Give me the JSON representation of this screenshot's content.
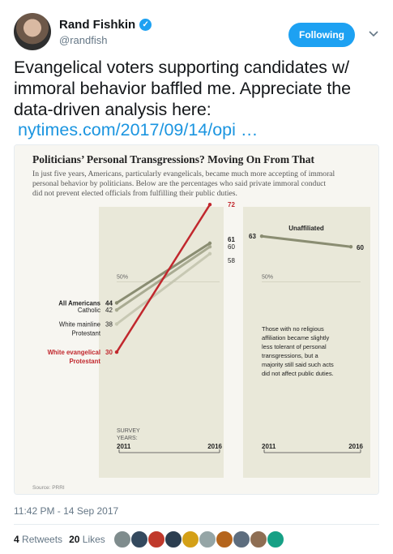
{
  "author": {
    "name": "Rand Fishkin",
    "handle": "@randfish"
  },
  "follow_label": "Following",
  "tweet": {
    "text": "Evangelical voters supporting candidates w/ immoral behavior baffled me. Appreciate the data-driven analysis here:",
    "link": "nytimes.com/2017/09/14/opi …"
  },
  "card": {
    "title": "Politicians’ Personal Transgressions? Moving On From That",
    "subtitle_line1": "In just five years, Americans, particularly evangelicals, became much more accepting of immoral",
    "subtitle_line2": "personal behavior by politicians. Below are the percentages who said private immoral conduct",
    "subtitle_line3": "did not prevent elected officials from fulfilling their public duties.",
    "source": "Source: PRRI",
    "note_line1": "Those with no religious",
    "note_line2": "affiliation became slightly",
    "note_line3": "less tolerant of personal",
    "note_line4": "transgressions, but a",
    "note_line5": "majority still said such acts",
    "note_line6": "did not affect public duties.",
    "survey_label_1": "SURVEY",
    "survey_label_2": "YEARS:",
    "ref_label": "50%"
  },
  "chart_data": [
    {
      "type": "line",
      "title": "Politicians’ Personal Transgressions? Moving On From That",
      "x": [
        "2011",
        "2016"
      ],
      "ylim": [
        0,
        100
      ],
      "reference_line": 50,
      "series": [
        {
          "name": "All Americans",
          "values": [
            44,
            61
          ],
          "color": "#8a8d72"
        },
        {
          "name": "Catholic",
          "values": [
            42,
            60
          ],
          "color": "#a9ab92"
        },
        {
          "name": "White mainline Protestant",
          "values": [
            38,
            58
          ],
          "color": "#c7c8b3"
        },
        {
          "name": "White evangelical Protestant",
          "values": [
            30,
            72
          ],
          "color": "#c1272d"
        }
      ],
      "label_lines": {
        "All Americans": [
          "All Americans"
        ],
        "Catholic": [
          "Catholic"
        ],
        "White mainline Protestant": [
          "White mainline",
          "Protestant"
        ],
        "White evangelical Protestant": [
          "White evangelical",
          "Protestant"
        ]
      }
    },
    {
      "type": "line",
      "x": [
        "2011",
        "2016"
      ],
      "ylim": [
        0,
        100
      ],
      "reference_line": 50,
      "series": [
        {
          "name": "Unaffiliated",
          "values": [
            63,
            60
          ],
          "color": "#8a8d72"
        }
      ]
    }
  ],
  "meta": {
    "timestamp": "11:42 PM - 14 Sep 2017",
    "retweets_count": "4",
    "retweets_label": "Retweets",
    "likes_count": "20",
    "likes_label": "Likes"
  },
  "liker_colors": [
    "#7f8c8d",
    "#34495e",
    "#c0392b",
    "#2c3e50",
    "#d4a017",
    "#95a5a6",
    "#b5651d",
    "#5d6d7e",
    "#8e6e53",
    "#16a085"
  ]
}
